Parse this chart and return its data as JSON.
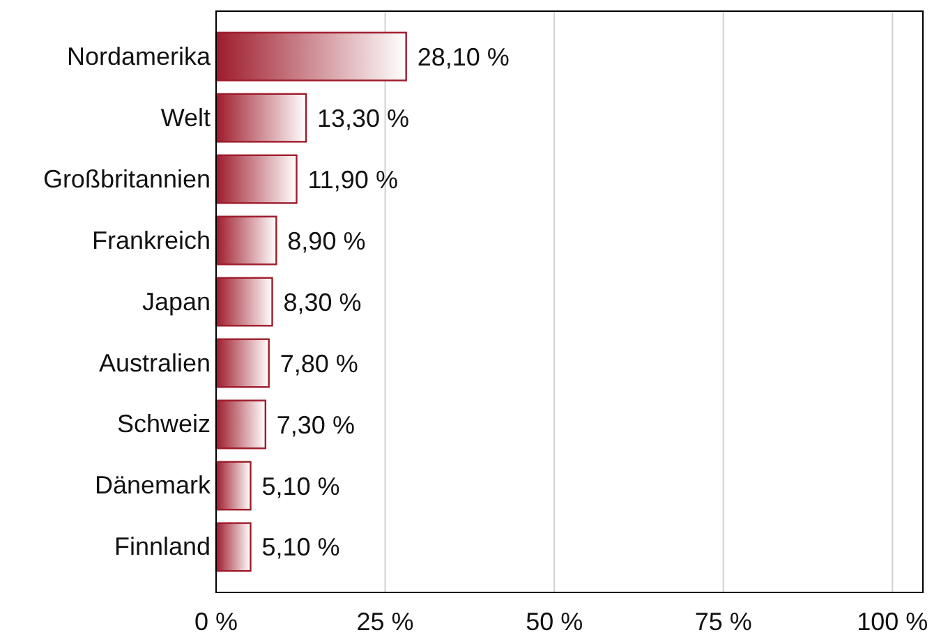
{
  "chart_data": {
    "type": "bar",
    "orientation": "horizontal",
    "categories": [
      "Nordamerika",
      "Welt",
      "Großbritannien",
      "Frankreich",
      "Japan",
      "Australien",
      "Schweiz",
      "Dänemark",
      "Finnland"
    ],
    "values": [
      28.1,
      13.3,
      11.9,
      8.9,
      8.3,
      7.8,
      7.3,
      5.1,
      5.1
    ],
    "value_labels": [
      "28,10 %",
      "13,30 %",
      "11,90 %",
      "8,90 %",
      "8,30 %",
      "7,80 %",
      "7,30 %",
      "5,10 %",
      "5,10 %"
    ],
    "color": "#9e1b2b",
    "xlim": [
      0,
      104.5
    ],
    "xticks": [
      {
        "value": 0,
        "label": "0 %"
      },
      {
        "value": 25,
        "label": "25 %"
      },
      {
        "value": 50,
        "label": "50 %"
      },
      {
        "value": 75,
        "label": "75 %"
      },
      {
        "value": 100,
        "label": "100 %"
      }
    ],
    "grid": "x"
  }
}
